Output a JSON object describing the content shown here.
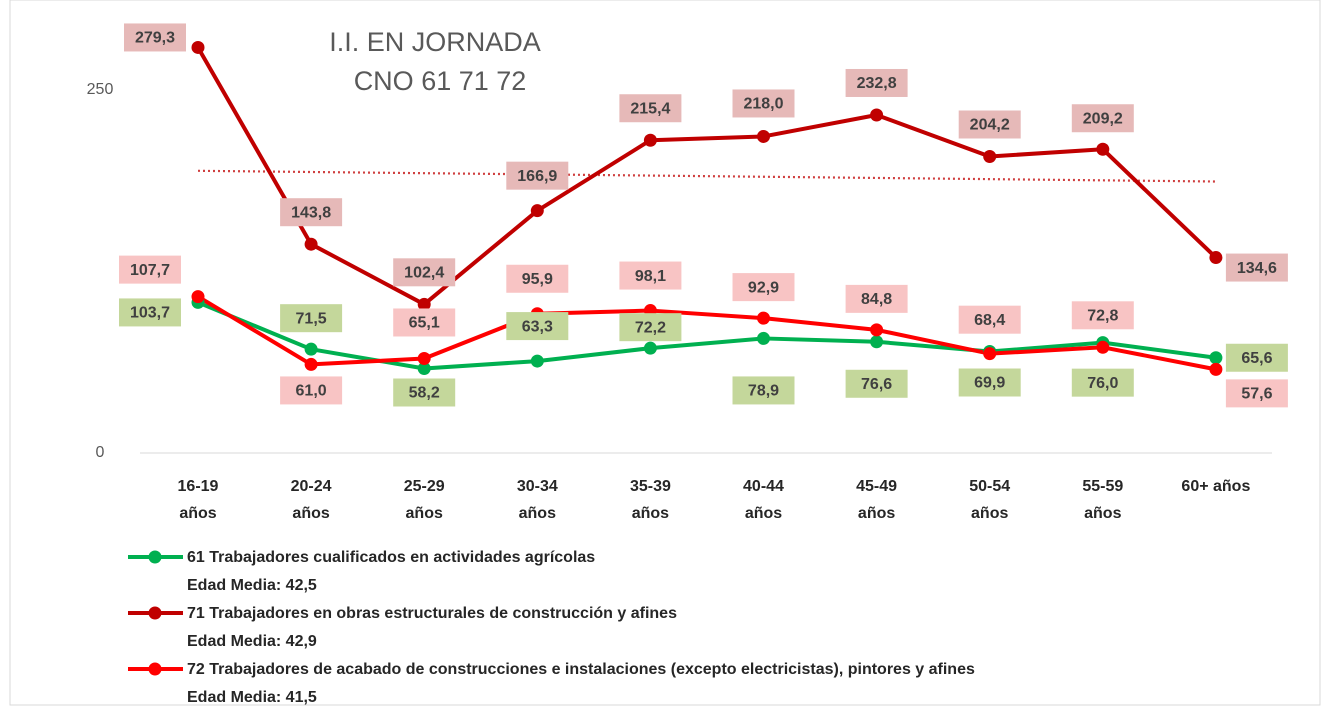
{
  "chart_data": {
    "type": "line",
    "title": "I.I. EN JORNADA",
    "subtitle": "CNO 61 71 72",
    "categories": [
      "16-19 años",
      "20-24 años",
      "25-29 años",
      "30-34 años",
      "35-39 años",
      "40-44 años",
      "45-49 años",
      "50-54 años",
      "55-59 años",
      "60+ años"
    ],
    "series": [
      {
        "name": "61 Trabajadores cualificados en actividades agrícolas",
        "note": "Edad Media: 42,5",
        "color": "#00b050",
        "label_color": "#c4d79b",
        "values": [
          103.7,
          71.5,
          58.2,
          63.3,
          72.2,
          78.9,
          76.6,
          69.9,
          76.0,
          65.6
        ],
        "value_labels": [
          "103,7",
          "71,5",
          "58,2",
          "63,3",
          "72,2",
          "78,9",
          "76,6",
          "69,9",
          "76,0",
          "65,6"
        ]
      },
      {
        "name": "71 Trabajadores en obras estructurales de construcción y afines",
        "note": "Edad Media: 42,9",
        "color": "#c00000",
        "label_color": "#e6b9b8",
        "trendline": "linear",
        "values": [
          279.3,
          143.8,
          102.4,
          166.9,
          215.4,
          218.0,
          232.8,
          204.2,
          209.2,
          134.6
        ],
        "value_labels": [
          "279,3",
          "143,8",
          "102,4",
          "166,9",
          "215,4",
          "218,0",
          "232,8",
          "204,2",
          "209,2",
          "134,6"
        ]
      },
      {
        "name": "72 Trabajadores de acabado de construcciones e instalaciones (excepto electricistas), pintores y afines",
        "note": "Edad Media: 41,5",
        "color": "#ff0000",
        "label_color": "#f8c4c4",
        "values": [
          107.7,
          61.0,
          65.1,
          95.9,
          98.1,
          92.9,
          84.8,
          68.4,
          72.8,
          57.6
        ],
        "value_labels": [
          "107,7",
          "61,0",
          "65,1",
          "95,9",
          "98,1",
          "92,9",
          "84,8",
          "68,4",
          "72,8",
          "57,6"
        ]
      }
    ],
    "ylim": [
      0,
      300
    ],
    "yticks": [
      0,
      250
    ],
    "grid": false,
    "legend": "bottom"
  }
}
